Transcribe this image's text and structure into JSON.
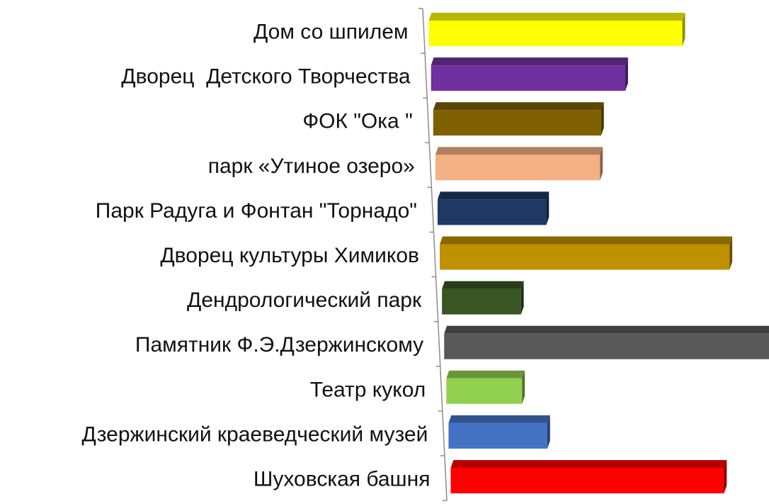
{
  "chart_data": {
    "type": "bar",
    "orientation": "horizontal",
    "three_d": true,
    "grid": false,
    "legend": "none",
    "title": "",
    "xlabel": "",
    "ylabel": "",
    "categories": [
      "Дом со шпилем",
      "Дворец  Детского Творчества",
      "ФОК \"Ока \"",
      "парк «Утиное озеро»",
      "Парк Радуга и Фонтан \"Торнадо\"",
      "Дворец культуры Химиков",
      "Дендрологический парк",
      "Памятник Ф.Э.Дзержинскому",
      "Театр кукол",
      "Дзержинский краеведческий музей",
      "Шуховская башня"
    ],
    "values": [
      7.7,
      5.9,
      5.1,
      5.0,
      3.3,
      8.8,
      2.4,
      10.5,
      2.3,
      3.0,
      8.3
    ],
    "colors": [
      "#ffff00",
      "#7030a0",
      "#7f6000",
      "#f4b183",
      "#1f3864",
      "#bf9000",
      "#375623",
      "#595959",
      "#92d050",
      "#4472c4",
      "#ff0000"
    ]
  }
}
